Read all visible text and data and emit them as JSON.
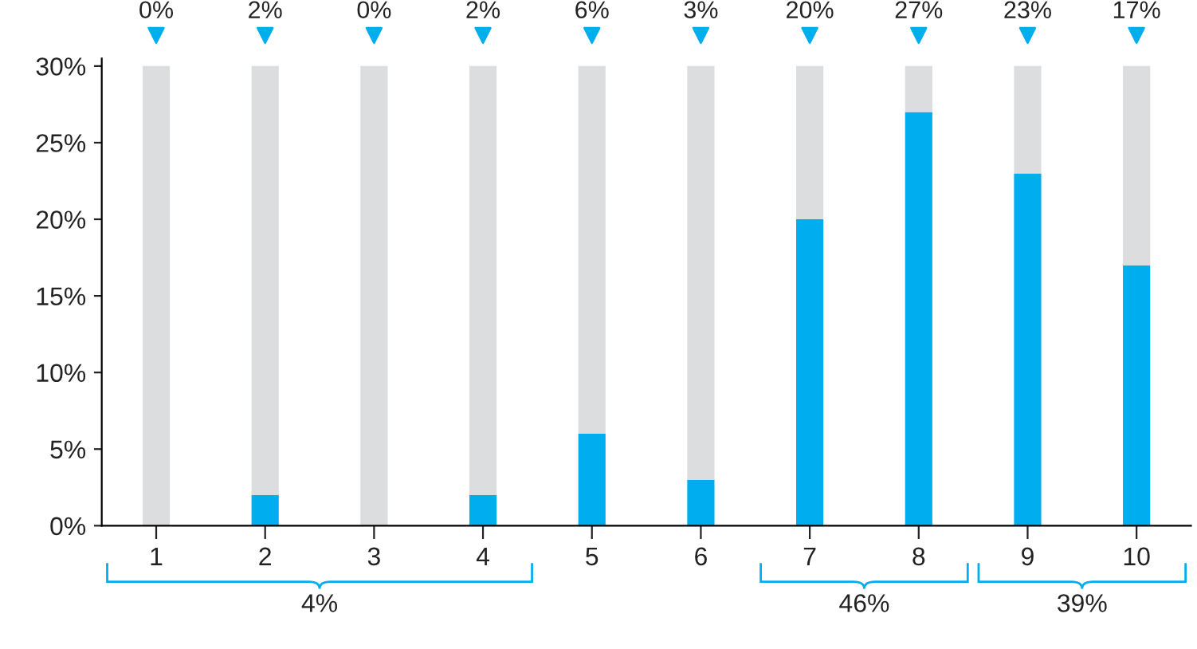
{
  "chart_data": {
    "type": "bar",
    "stacked": true,
    "categories": [
      "1",
      "2",
      "3",
      "4",
      "5",
      "6",
      "7",
      "8",
      "9",
      "10"
    ],
    "series": [
      {
        "color": "#00aeef",
        "values": [
          0,
          2,
          0,
          2,
          6,
          3,
          20,
          27,
          23,
          17
        ],
        "value_labels": [
          "0%",
          "2%",
          "0%",
          "2%",
          "6%",
          "3%",
          "20%",
          "27%",
          "23%",
          "17%"
        ]
      },
      {
        "color": "#dcdddf",
        "values": [
          30,
          28,
          30,
          28,
          24,
          27,
          10,
          3,
          7,
          13
        ]
      }
    ],
    "ylim": [
      0,
      30.5
    ],
    "yticks": [
      {
        "value": 0,
        "label": "0%"
      },
      {
        "value": 5,
        "label": "5%"
      },
      {
        "value": 10,
        "label": "10%"
      },
      {
        "value": 15,
        "label": "15%"
      },
      {
        "value": 20,
        "label": "20%"
      },
      {
        "value": 25,
        "label": "25%"
      },
      {
        "value": 30,
        "label": "30%"
      }
    ],
    "annotations": [
      "4%",
      "46%",
      "39%"
    ],
    "grid": false,
    "legend": false
  }
}
